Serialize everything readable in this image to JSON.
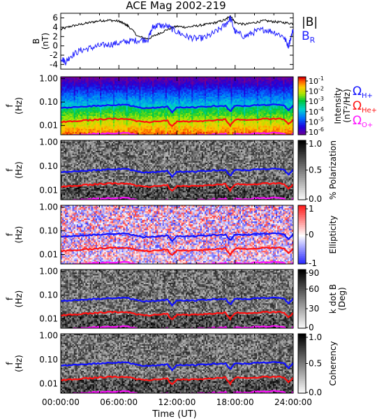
{
  "chart_data": {
    "title": "ACE Mag 2002-219",
    "xlabel": "Time (UT)",
    "x_ticks": [
      "00:00:00",
      "06:00:00",
      "12:00:00",
      "18:00:00",
      "24:00:00"
    ],
    "x_range_hours": [
      0,
      24
    ],
    "panels": [
      {
        "type": "line",
        "ylabel_lines": [
          "B",
          "(nT)"
        ],
        "yticks": [
          "6",
          "4",
          "2",
          "0",
          "-2",
          "-4"
        ],
        "ylim": [
          -5,
          7
        ],
        "series": [
          {
            "name": "|B|",
            "color": "#000000",
            "x": [
              0,
              1,
              2,
              3,
              4,
              5,
              6,
              6.5,
              7,
              8,
              9,
              10,
              11,
              12,
              13,
              14,
              15,
              16,
              17,
              17.5,
              18,
              19,
              20,
              21,
              22,
              23,
              24
            ],
            "y": [
              3.5,
              4.2,
              4.6,
              5.0,
              5.4,
              5.5,
              5.3,
              4.8,
              4.2,
              2.0,
              1.5,
              2.5,
              3.5,
              4.2,
              4.0,
              4.3,
              4.6,
              5.0,
              5.6,
              6.5,
              5.0,
              4.6,
              5.0,
              5.4,
              5.2,
              5.0,
              4.8
            ]
          },
          {
            "name": "B_R",
            "color": "#2020ff",
            "x": [
              0,
              0.5,
              1,
              2,
              3,
              4,
              5,
              6,
              7,
              8,
              9,
              9.5,
              10,
              11,
              12,
              13,
              14,
              15,
              16,
              17,
              17.5,
              18,
              19,
              20,
              21,
              22,
              23,
              23.5,
              24
            ],
            "y": [
              -2.5,
              -3.5,
              -2.2,
              -1.0,
              -0.5,
              0.0,
              0.3,
              0.6,
              1.0,
              1.2,
              1.4,
              4.0,
              4.4,
              4.2,
              3.0,
              2.0,
              1.5,
              1.8,
              3.0,
              4.5,
              6.0,
              3.0,
              2.0,
              3.0,
              3.5,
              3.0,
              2.0,
              0.0,
              3.5
            ]
          }
        ],
        "legend": [
          "|B|",
          "B_R"
        ]
      },
      {
        "type": "heatmap",
        "colormap": "rainbow",
        "ylabel_lines": [
          "f",
          "(Hz)"
        ],
        "yticks": [
          "1.00",
          "0.10",
          "0.01"
        ],
        "ylim": [
          0.004,
          1.2
        ],
        "yscale": "log",
        "colorbar": {
          "label_lines": [
            "Intensity",
            "(nT²/Hz)"
          ],
          "ticks": [
            {
              "base": "10",
              "exp": "-1"
            },
            {
              "base": "10",
              "exp": "-2"
            },
            {
              "base": "10",
              "exp": "-3"
            },
            {
              "base": "10",
              "exp": "-4"
            },
            {
              "base": "10",
              "exp": "-5"
            },
            {
              "base": "10",
              "exp": "-6"
            }
          ],
          "range": [
            1e-06,
            0.1
          ],
          "scale": "log"
        },
        "gyro_legend": [
          {
            "symbol": "Ω",
            "sub": "H+",
            "color": "#1010ff"
          },
          {
            "symbol": "Ω",
            "sub": "He+",
            "color": "#ff1010"
          },
          {
            "symbol": "Ω",
            "sub": "O+",
            "color": "#ff10ff"
          }
        ]
      },
      {
        "type": "heatmap",
        "colormap": "gray",
        "ylabel_lines": [
          "f",
          "(Hz)"
        ],
        "yticks": [
          "1.00",
          "0.10",
          "0.01"
        ],
        "ylim": [
          0.004,
          1.2
        ],
        "yscale": "log",
        "colorbar": {
          "label_lines": [
            "% Polarization"
          ],
          "ticks": [
            "1.0",
            "0.5",
            "0.0"
          ],
          "range": [
            0,
            1
          ]
        }
      },
      {
        "type": "heatmap",
        "colormap": "bwr",
        "ylabel_lines": [
          "f",
          "(Hz)"
        ],
        "yticks": [
          "1.00",
          "0.10",
          "0.01"
        ],
        "ylim": [
          0.004,
          1.2
        ],
        "yscale": "log",
        "colorbar": {
          "label_lines": [
            "Ellipticity"
          ],
          "ticks": [
            "1",
            "0",
            "-1"
          ],
          "range": [
            -1,
            1
          ]
        }
      },
      {
        "type": "heatmap",
        "colormap": "gray",
        "ylabel_lines": [
          "f",
          "(Hz)"
        ],
        "yticks": [
          "1.00",
          "0.10",
          "0.01"
        ],
        "ylim": [
          0.004,
          1.2
        ],
        "yscale": "log",
        "colorbar": {
          "label_lines": [
            "k dot B",
            "(Deg)"
          ],
          "ticks": [
            "90",
            "60",
            "30",
            "0"
          ],
          "range": [
            0,
            90
          ]
        }
      },
      {
        "type": "heatmap",
        "colormap": "gray",
        "ylabel_lines": [
          "f",
          "(Hz)"
        ],
        "yticks": [
          "1.00",
          "0.10",
          "0.01"
        ],
        "ylim": [
          0.004,
          1.2
        ],
        "yscale": "log",
        "colorbar": {
          "label_lines": [
            "Coherency"
          ],
          "ticks": [
            "1.0",
            "0.5",
            "0.0"
          ],
          "range": [
            0,
            1
          ]
        }
      }
    ],
    "gyrofrequencies": {
      "x": [
        0,
        1,
        2,
        3,
        4,
        5,
        6,
        7,
        8,
        9,
        10,
        11,
        11.5,
        12,
        13,
        14,
        15,
        16,
        17,
        17.5,
        18,
        19,
        20,
        21,
        22,
        23,
        23.5,
        24
      ],
      "H+": [
        0.055,
        0.06,
        0.062,
        0.066,
        0.07,
        0.074,
        0.076,
        0.075,
        0.06,
        0.054,
        0.058,
        0.065,
        0.035,
        0.06,
        0.058,
        0.06,
        0.064,
        0.068,
        0.07,
        0.04,
        0.072,
        0.068,
        0.072,
        0.076,
        0.076,
        0.074,
        0.045,
        0.07
      ],
      "He+": [
        0.014,
        0.015,
        0.016,
        0.017,
        0.018,
        0.019,
        0.019,
        0.019,
        0.015,
        0.014,
        0.015,
        0.016,
        0.009,
        0.015,
        0.015,
        0.015,
        0.016,
        0.017,
        0.018,
        0.01,
        0.018,
        0.017,
        0.018,
        0.019,
        0.019,
        0.019,
        0.011,
        0.018
      ],
      "O+": [
        0.0035,
        0.0038,
        0.004,
        0.0042,
        0.0045,
        0.0046,
        0.0047,
        0.0047,
        0.0038,
        0.0035,
        0.0037,
        0.004,
        0.0025,
        0.0038,
        0.0037,
        0.0038,
        0.004,
        0.0042,
        0.0045,
        0.0028,
        0.0045,
        0.0042,
        0.0045,
        0.0047,
        0.0047,
        0.0046,
        0.003,
        0.0045
      ],
      "colors": {
        "H+": "#1010ff",
        "He+": "#ff1010",
        "O+": "#ff10ff"
      }
    }
  }
}
